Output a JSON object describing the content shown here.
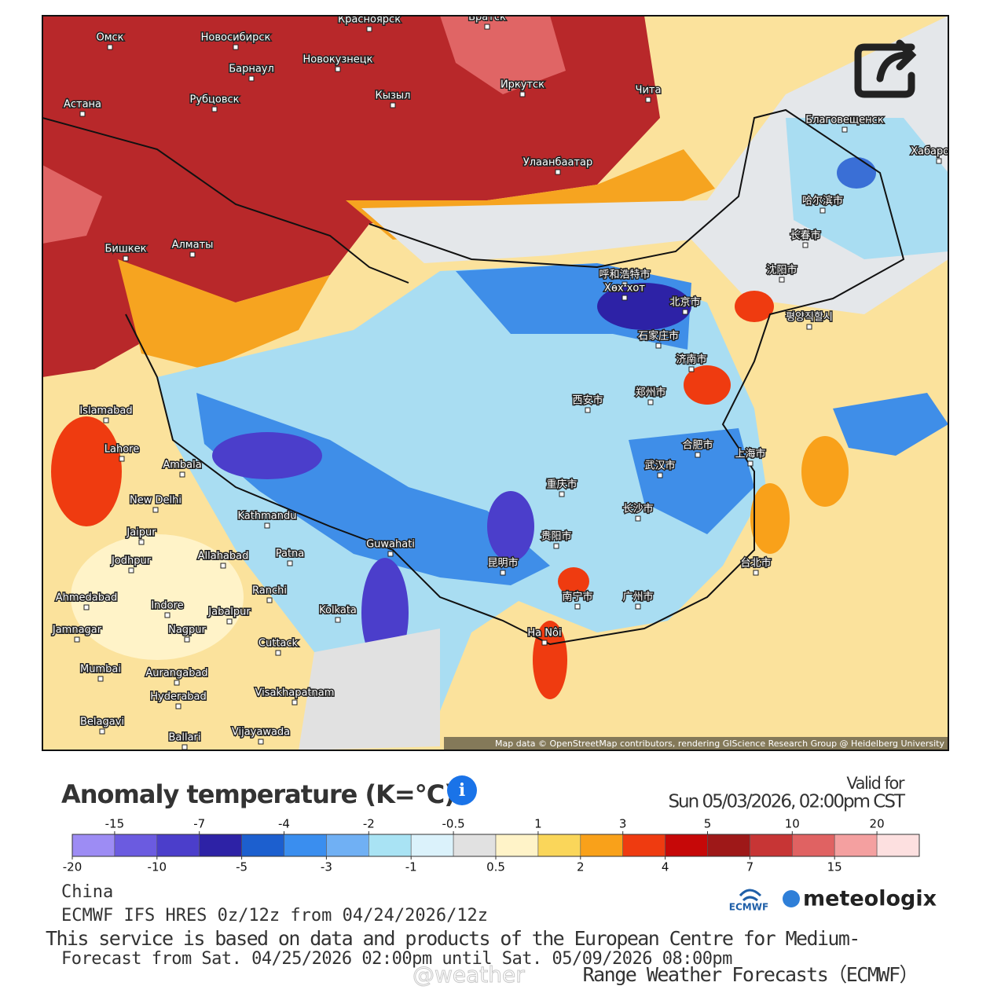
{
  "map": {
    "cities": [
      "Омск",
      "Новосибирск",
      "Красноярск",
      "Братск",
      "Новокузнецк",
      "Барнаул",
      "Иркутск",
      "Кызыл",
      "Чита",
      "Астана",
      "Рубцовск",
      "Улаанбаатар",
      "Благовещенск",
      "Хабаровск",
      "Бишкек",
      "Алматы",
      "呼和浩特市",
      "Хөх хот",
      "北京市",
      "石家庄市",
      "济南市",
      "郑州市",
      "西安市",
      "上海市",
      "合肥市",
      "武汉市",
      "重庆市",
      "长沙市",
      "贵阳市",
      "昆明市",
      "南宁市",
      "广州市",
      "台北市",
      "Ha Nôi",
      "哈尔滨市",
      "长春市",
      "沈阳市",
      "평양직할시",
      "Kathmandu",
      "New Delhi",
      "Islamabad",
      "Lahore",
      "Ambala",
      "Jaipur",
      "Jodhpur",
      "Allahabad",
      "Patna",
      "Guwahati",
      "Kolkata",
      "Ahmedabad",
      "Indore",
      "Jabalpur",
      "Nagpur",
      "Ranchi",
      "Jamnagar",
      "Mumbai",
      "Aurangabad",
      "Hyderabad",
      "Visakhapatnam",
      "Cuttack",
      "Vijayawada",
      "Belagavi",
      "Ballari"
    ],
    "attribution": "Map data © OpenStreetMap contributors, rendering GIScience Research Group @ Heidelberg University"
  },
  "legend": {
    "title": "Anomaly temperature (K=°C)",
    "valid_label": "Valid for",
    "valid_time": "Sun 05/03/2026, 02:00pm CST",
    "boundaries": [
      -20,
      -15,
      -10,
      -7,
      -5,
      -4,
      -3,
      -2,
      -1,
      -0.5,
      0.5,
      1,
      2,
      3,
      4,
      5,
      7,
      10,
      15,
      20
    ],
    "colors": [
      "#9d8cf4",
      "#6b5be0",
      "#4b3ecb",
      "#2d22a6",
      "#1c5fcf",
      "#3a8eef",
      "#70b0f4",
      "#a9e3f4",
      "#dbf2fb",
      "#e1e1e1",
      "#fff3c8",
      "#fad65a",
      "#f9a11a",
      "#ef3b10",
      "#c60808",
      "#9e1818",
      "#c73535",
      "#e06262",
      "#f4a0a0",
      "#fde0e0"
    ]
  },
  "footer": {
    "region": "China",
    "model": "ECMWF IFS HRES 0z/12z from 04/24/2026/12z",
    "notice_1": "This service is based on data and products of the European Centre for Medium-",
    "forecast_range": "Forecast from Sat. 04/25/2026 02:00pm until Sat. 05/09/2026 08:00pm",
    "notice_2": "Range Weather Forecasts（ECMWF）",
    "watermark": "@weather",
    "logo_ecmwf": "ECMWF",
    "logo_meteologix": "meteologix"
  }
}
